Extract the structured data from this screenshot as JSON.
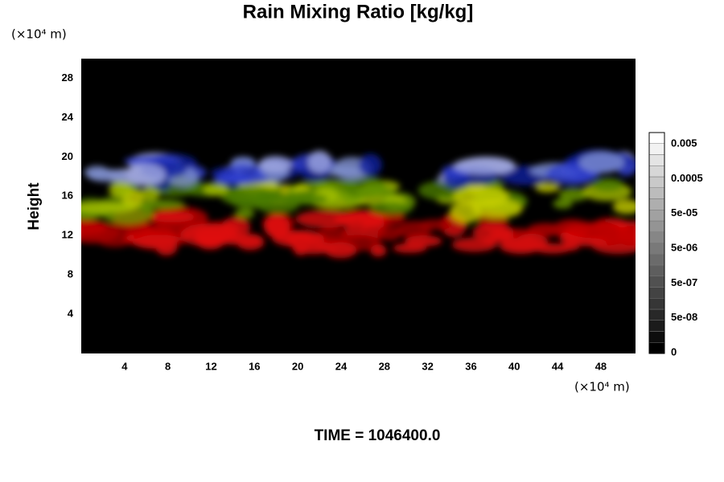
{
  "chart_data": {
    "type": "volume",
    "title": "Rain Mixing Ratio [kg/kg]",
    "y_label": "Height",
    "x_unit": "(×10⁴ m)",
    "y_unit": "(×10⁴ m)",
    "footer": "TIME = 1046400.0",
    "xlim": [
      0,
      51.2
    ],
    "xticks": [
      4,
      8,
      12,
      16,
      20,
      24,
      28,
      32,
      36,
      40,
      44,
      48
    ],
    "ylim": [
      0,
      30
    ],
    "yticks": [
      4,
      8,
      12,
      16,
      20,
      24,
      28
    ],
    "colorbar_labels": [
      "0",
      "5e-08",
      "5e-07",
      "5e-06",
      "5e-05",
      "0.0005",
      "0.005"
    ]
  }
}
